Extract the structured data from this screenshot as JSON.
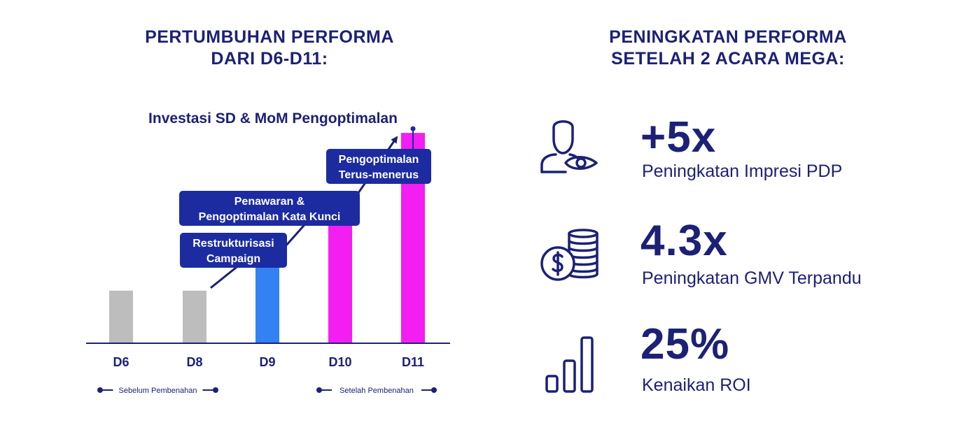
{
  "left_heading": "PERTUMBUHAN PERFORMA\nDARI D6-D11:",
  "right_heading": "PENINGKATAN PERFORMA\nSETELAH 2 ACARA MEGA:",
  "chart_data": {
    "type": "bar",
    "title": "Investasi SD & MoM Pengoptimalan",
    "categories": [
      "D6",
      "D8",
      "D9",
      "D10",
      "D11"
    ],
    "values": [
      1.0,
      1.0,
      1.75,
      2.75,
      4.0
    ],
    "ylim": [
      0,
      4.6
    ],
    "bar_colors": [
      "#bdbdbd",
      "#bdbdbd",
      "#3381f2",
      "#f21ef2",
      "#f21ef2"
    ],
    "annotations": [
      {
        "category": "D9",
        "text": "Restrukturisasi\nCampaign"
      },
      {
        "category": "D10",
        "text": "Penawaran &\nPengoptimalan Kata Kunci"
      },
      {
        "category": "D11",
        "text": "Pengoptimalan\nTerus-menerus"
      }
    ],
    "periods": [
      {
        "label": "Sebelum Pembenahan",
        "categories": [
          "D6",
          "D8"
        ]
      },
      {
        "label": "Setelah Pembenahan",
        "categories": [
          "D10",
          "D11"
        ]
      }
    ],
    "grid": false
  },
  "metrics": [
    {
      "icon": "user-eye-icon",
      "value": "+5x",
      "label": "Peningkatan Impresi PDP"
    },
    {
      "icon": "coins-dollar-icon",
      "value": "4.3x",
      "label": "Peningkatan GMV Terpandu"
    },
    {
      "icon": "bar-growth-icon",
      "value": "25%",
      "label": "Kenaikan ROI"
    }
  ],
  "colors": {
    "navy": "#1c2175",
    "callout": "#1c2ba0",
    "gray": "#bdbdbd",
    "blue": "#3381f2",
    "magenta": "#f21ef2"
  }
}
